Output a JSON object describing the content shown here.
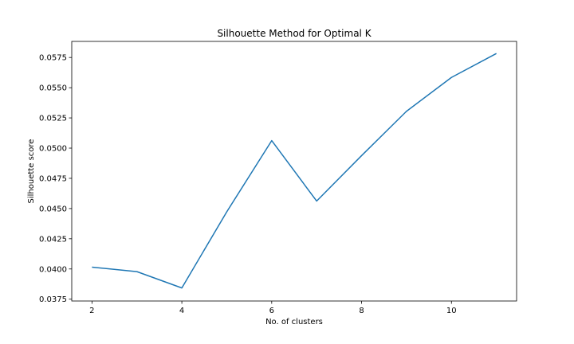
{
  "chart_data": {
    "type": "line",
    "title": "Silhouette Method for Optimal K",
    "xlabel": "No. of clusters",
    "ylabel": "Silhouette score",
    "xlim": [
      1.55,
      11.45
    ],
    "ylim": [
      0.03735,
      0.05883
    ],
    "xticks": [
      2,
      4,
      6,
      8,
      10
    ],
    "xtick_labels": [
      "2",
      "4",
      "6",
      "8",
      "10"
    ],
    "yticks": [
      0.0375,
      0.04,
      0.0425,
      0.045,
      0.0475,
      0.05,
      0.0525,
      0.055,
      0.0575
    ],
    "ytick_labels": [
      "0.0375",
      "0.0400",
      "0.0425",
      "0.0450",
      "0.0475",
      "0.0500",
      "0.0525",
      "0.0550",
      "0.0575"
    ],
    "grid": false,
    "series": [
      {
        "color": "#1f77b4",
        "x": [
          2,
          3,
          4,
          5,
          6,
          7,
          8,
          9,
          10,
          11
        ],
        "y": [
          0.04015,
          0.03978,
          0.03843,
          0.04473,
          0.05062,
          0.04562,
          0.04938,
          0.05305,
          0.05585,
          0.05783
        ]
      }
    ]
  }
}
